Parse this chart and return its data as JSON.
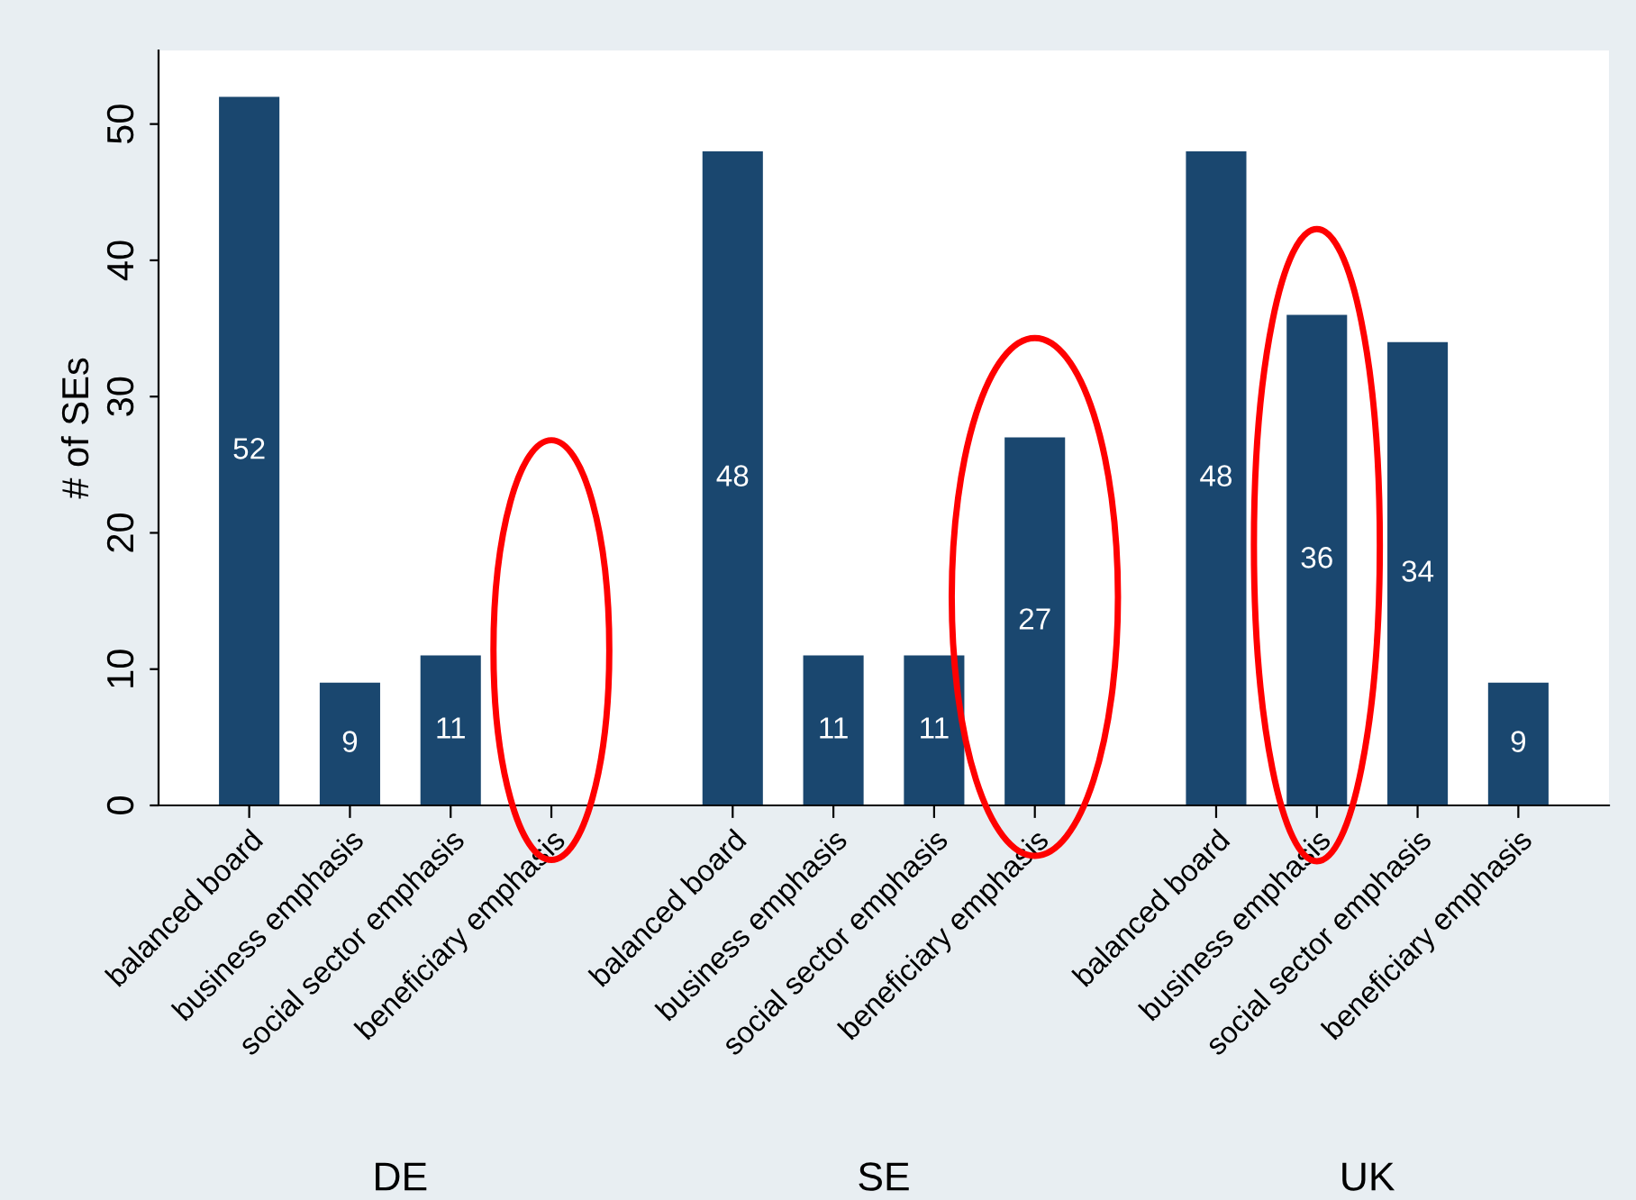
{
  "chart_data": [
    {
      "type": "bar",
      "xlabel": "DE",
      "ylabel": "# of SEs",
      "categories": [
        "balanced board",
        "business emphasis",
        "social sector emphasis",
        "beneficiary emphasis"
      ],
      "values": [
        52,
        9,
        11,
        0
      ],
      "value_labels": [
        "52",
        "9",
        "11",
        null
      ],
      "color": "#1a476f",
      "ylim": [
        0,
        55.4
      ],
      "yticks": [
        0,
        10,
        20,
        30,
        40,
        50
      ],
      "grid": false,
      "legend": false
    },
    {
      "type": "bar",
      "xlabel": "SE",
      "categories": [
        "balanced board",
        "business emphasis",
        "social sector emphasis",
        "beneficiary emphasis"
      ],
      "values": [
        48,
        11,
        11,
        27
      ],
      "data_labels": true,
      "color": "#1a476f",
      "ylim": [
        0,
        55.4
      ],
      "tick_labels": "x",
      "grid": false,
      "legend": false
    },
    {
      "type": "bar",
      "xlabel": "UK",
      "categories": [
        "balanced board",
        "business emphasis",
        "social sector emphasis",
        "beneficiary emphasis"
      ],
      "values": [
        48,
        36,
        34,
        9
      ],
      "data_labels": true,
      "color": "#1a476f",
      "ylim": [
        0,
        55.4
      ],
      "tick_labels": "x",
      "grid": false,
      "legend": false
    }
  ]
}
